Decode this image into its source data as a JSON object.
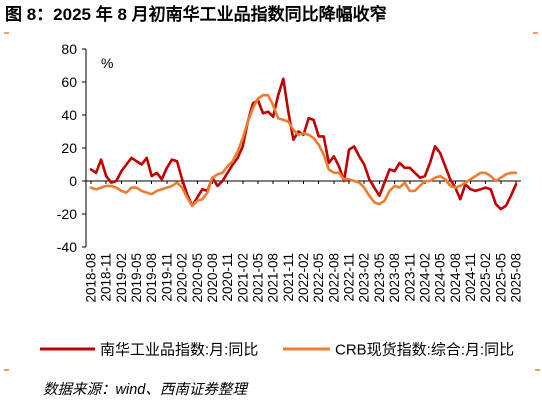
{
  "title": "图 8：2025 年 8 月初南华工业品指数同比降幅收窄",
  "source": "数据来源：wind、西南证券整理",
  "colors": {
    "rule": "#ED7D31"
  },
  "chart_data": {
    "type": "line",
    "ylabel": "%",
    "ylim": [
      -40,
      80
    ],
    "yticks": [
      80,
      60,
      40,
      20,
      0,
      -20,
      -40
    ],
    "grid": false,
    "legend": "bottom",
    "x": [
      "2018-08",
      "2018-09",
      "2018-10",
      "2018-11",
      "2018-12",
      "2019-01",
      "2019-02",
      "2019-03",
      "2019-04",
      "2019-05",
      "2019-06",
      "2019-07",
      "2019-08",
      "2019-09",
      "2019-10",
      "2019-11",
      "2019-12",
      "2020-01",
      "2020-02",
      "2020-03",
      "2020-04",
      "2020-05",
      "2020-06",
      "2020-07",
      "2020-08",
      "2020-09",
      "2020-10",
      "2020-11",
      "2020-12",
      "2021-01",
      "2021-02",
      "2021-03",
      "2021-04",
      "2021-05",
      "2021-06",
      "2021-07",
      "2021-08",
      "2021-09",
      "2021-10",
      "2021-11",
      "2021-12",
      "2022-01",
      "2022-02",
      "2022-03",
      "2022-04",
      "2022-05",
      "2022-06",
      "2022-07",
      "2022-08",
      "2022-09",
      "2022-10",
      "2022-11",
      "2022-12",
      "2023-01",
      "2023-02",
      "2023-03",
      "2023-04",
      "2023-05",
      "2023-06",
      "2023-07",
      "2023-08",
      "2023-09",
      "2023-10",
      "2023-11",
      "2023-12",
      "2024-01",
      "2024-02",
      "2024-03",
      "2024-04",
      "2024-05",
      "2024-06",
      "2024-07",
      "2024-08",
      "2024-09",
      "2024-10",
      "2024-11",
      "2024-12",
      "2025-01",
      "2025-02",
      "2025-03",
      "2025-04",
      "2025-05",
      "2025-06",
      "2025-07",
      "2025-08"
    ],
    "xticks": [
      "2018-08",
      "2018-11",
      "2019-02",
      "2019-05",
      "2019-08",
      "2019-11",
      "2020-02",
      "2020-05",
      "2020-08",
      "2020-11",
      "2021-02",
      "2021-05",
      "2021-08",
      "2021-11",
      "2022-02",
      "2022-05",
      "2022-08",
      "2022-11",
      "2023-02",
      "2023-05",
      "2023-08",
      "2023-11",
      "2024-02",
      "2024-05",
      "2024-08",
      "2024-11",
      "2025-02",
      "2025-05",
      "2025-08"
    ],
    "series": [
      {
        "name": "南华工业品指数:月:同比",
        "color": "#C00000",
        "values": [
          7,
          5,
          13,
          3,
          -1,
          0,
          6,
          10,
          14,
          12,
          10,
          14,
          3,
          5,
          1,
          8,
          13,
          12,
          1,
          -8,
          -15,
          -10,
          -5,
          -6,
          2,
          -3,
          0,
          5,
          10,
          14,
          21,
          36,
          47,
          49,
          41,
          42,
          39,
          52,
          62,
          42,
          25,
          30,
          28,
          38,
          37,
          27,
          27,
          11,
          15,
          9,
          0,
          19,
          21,
          15,
          10,
          1,
          -4,
          -9,
          -1,
          7,
          6,
          11,
          8,
          8,
          5,
          2,
          3,
          11,
          21,
          17,
          9,
          1,
          -4,
          -11,
          -2,
          -5,
          -6,
          -5,
          -4,
          -5,
          -14,
          -17,
          -15,
          -9,
          -2
        ]
      },
      {
        "name": "CRB现货指数:综合:月:同比",
        "color": "#ED7D31",
        "values": [
          -4,
          -5,
          -4,
          -3,
          -3,
          -4,
          -6,
          -7,
          -4,
          -4,
          -6,
          -7,
          -8,
          -6,
          -5,
          -4,
          -3,
          -1,
          -4,
          -10,
          -15,
          -12,
          -11,
          -7,
          2,
          4,
          5,
          9,
          12,
          18,
          26,
          36,
          44,
          50,
          52,
          52,
          46,
          38,
          37,
          36,
          31,
          28,
          29,
          28,
          26,
          22,
          16,
          7,
          5,
          5,
          1,
          1,
          0,
          -1,
          -4,
          -9,
          -13,
          -14,
          -12,
          -6,
          -3,
          -4,
          -1,
          -6,
          -6,
          -3,
          0,
          0,
          2,
          3,
          1,
          -3,
          -4,
          -3,
          -1,
          1,
          3,
          5,
          5,
          3,
          0,
          2,
          4,
          5,
          5
        ]
      }
    ]
  }
}
